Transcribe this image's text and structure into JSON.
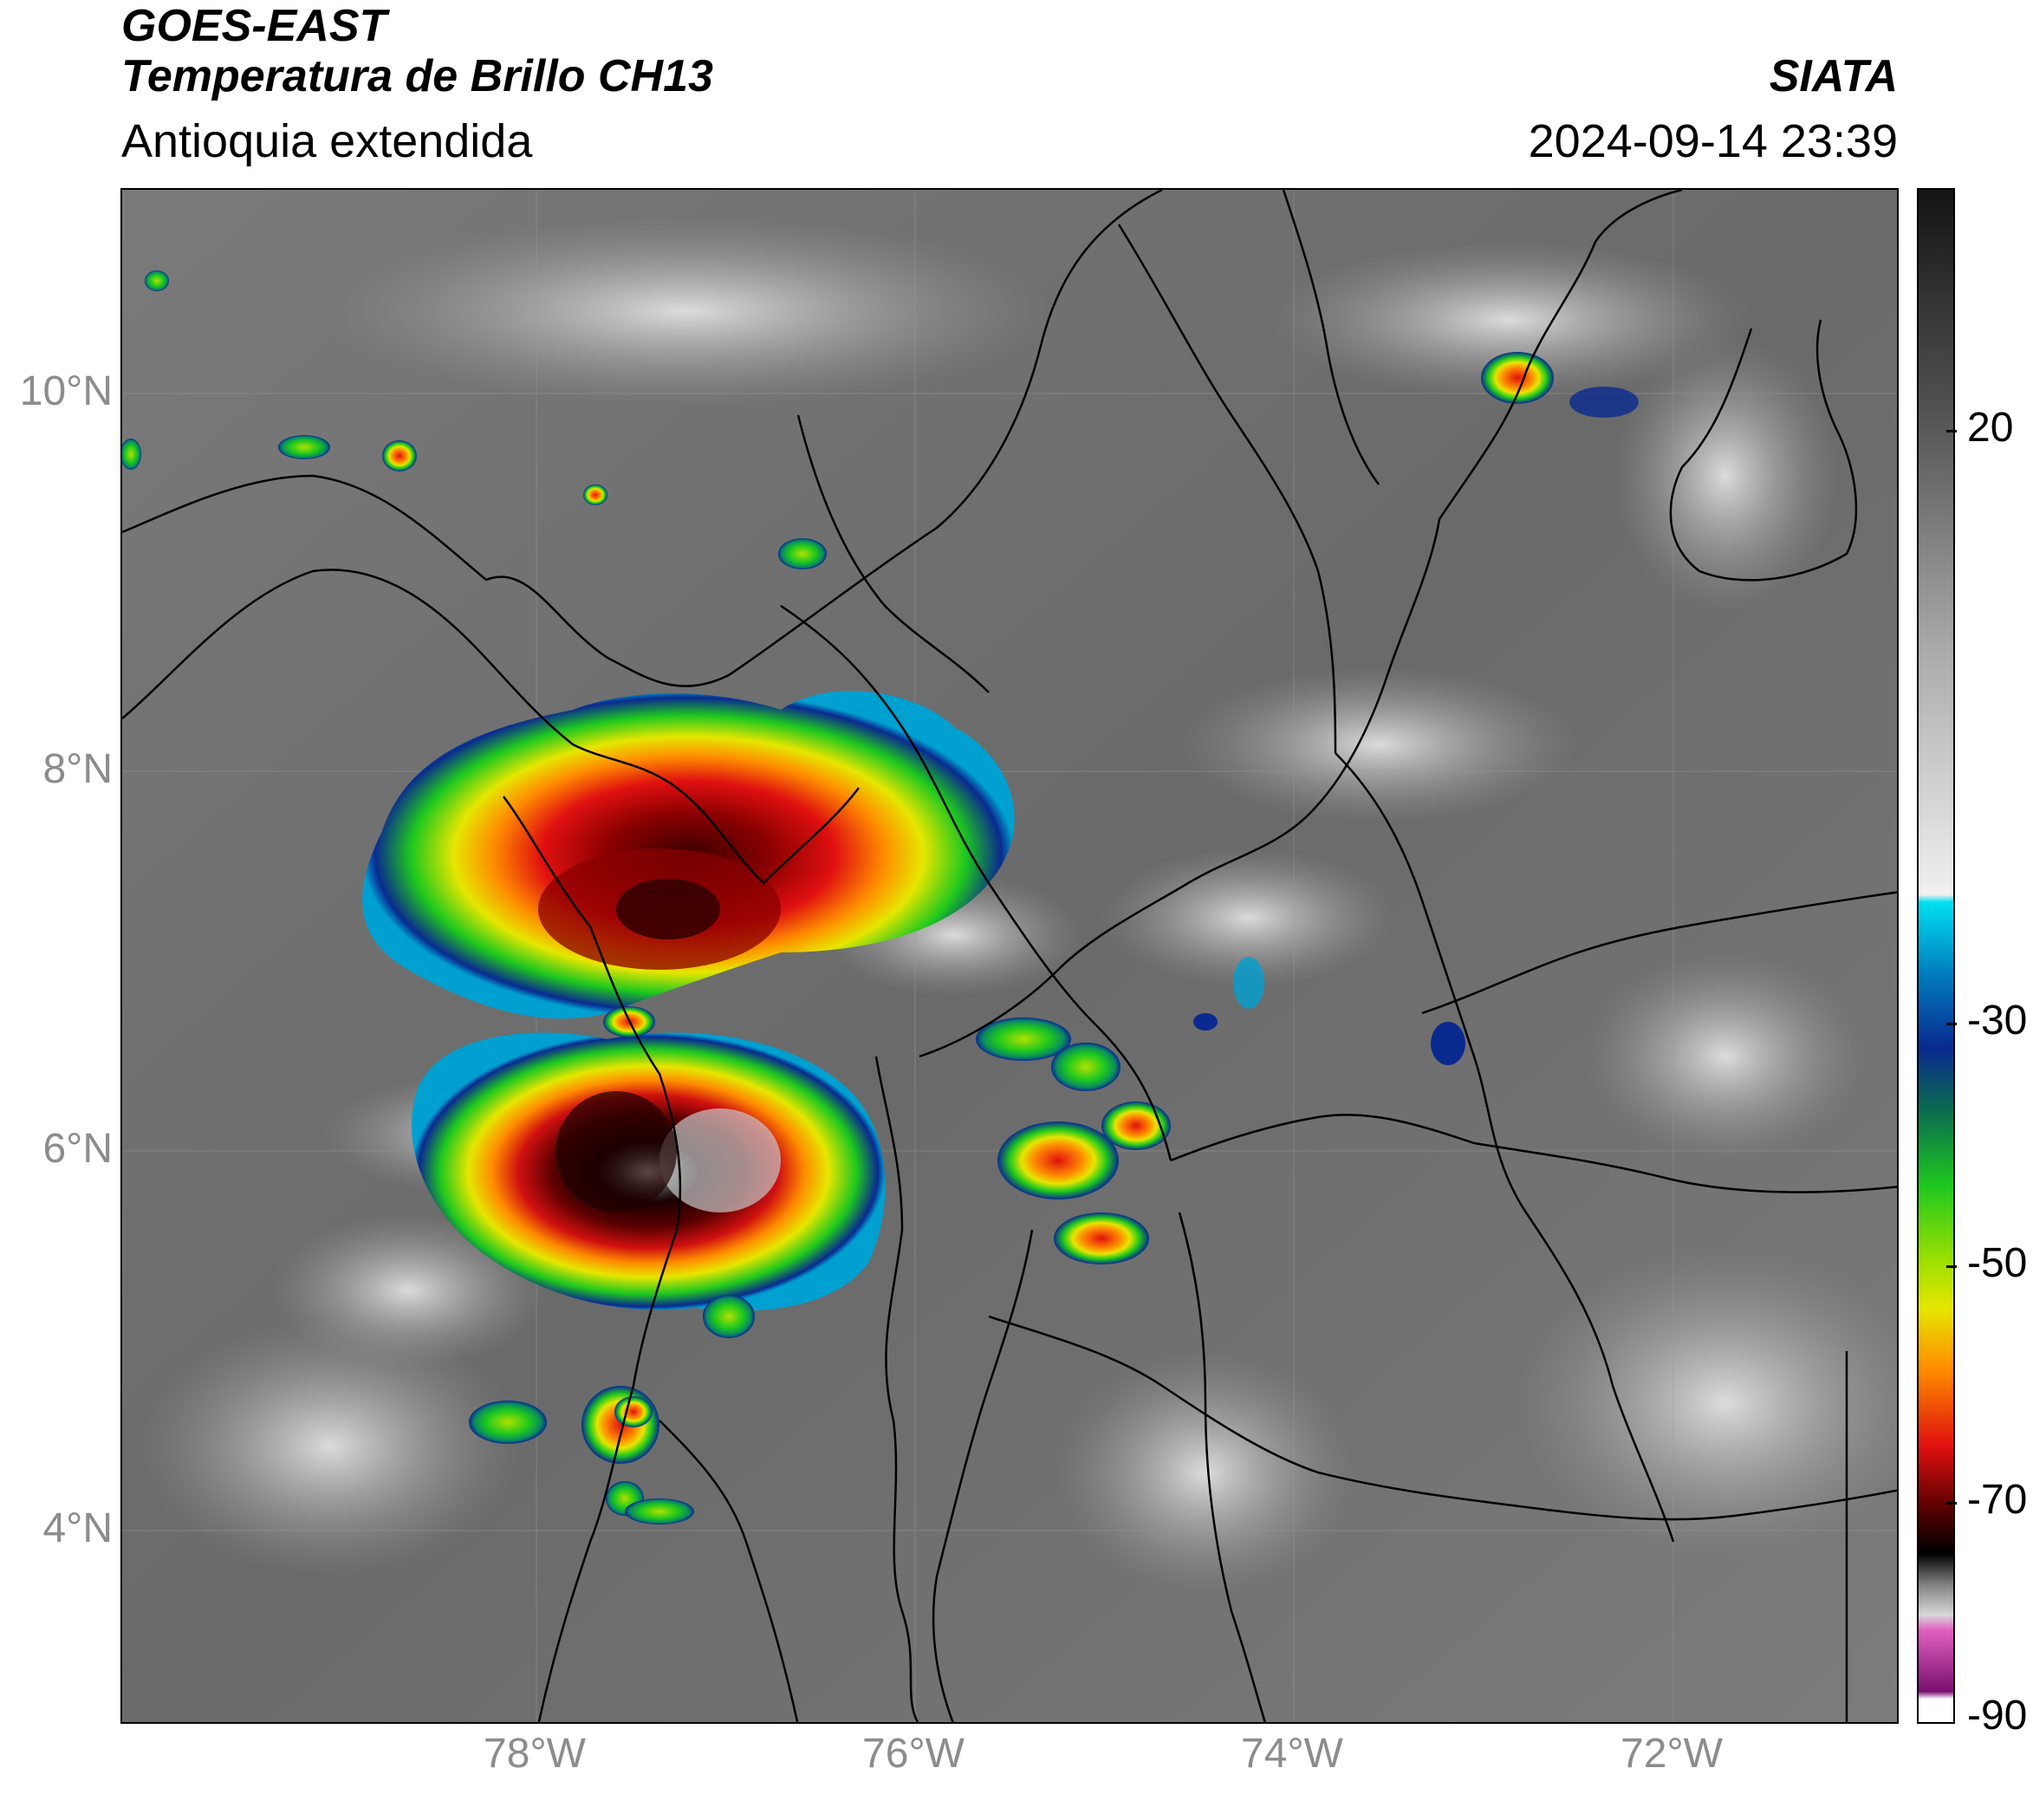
{
  "header": {
    "satellite": "GOES-EAST",
    "product": "Temperatura de Brillo CH13",
    "region": "Antioquia extendida",
    "organization": "SIATA",
    "datetime": "2024-09-14 23:39"
  },
  "map": {
    "lat_range": [
      2.7,
      10.8
    ],
    "lon_range": [
      -80.2,
      -70.8
    ],
    "y_ticks": [
      {
        "value": 10,
        "label": "10°N"
      },
      {
        "value": 8,
        "label": "8°N"
      },
      {
        "value": 6,
        "label": "6°N"
      },
      {
        "value": 4,
        "label": "4°N"
      }
    ],
    "x_ticks": [
      {
        "value": -78,
        "label": "78°W"
      },
      {
        "value": -76,
        "label": "76°W"
      },
      {
        "value": -74,
        "label": "74°W"
      },
      {
        "value": -72,
        "label": "72°W"
      }
    ]
  },
  "colorbar": {
    "range": [
      -90,
      35
    ],
    "ticks": [
      {
        "value": 20,
        "label": "20"
      },
      {
        "value": -30,
        "label": "-30"
      },
      {
        "value": -50,
        "label": "-50"
      },
      {
        "value": -70,
        "label": "-70"
      },
      {
        "value": -90,
        "label": "-90"
      }
    ],
    "colors": {
      "warm_dark": "#141414",
      "cold_white": "#f0f0f0",
      "cyan": "#00e0f0",
      "blue": "#0a2a90",
      "green": "#1ec81e",
      "yellow": "#e6e600",
      "orange": "#ff8c00",
      "red": "#e01010",
      "dark_red": "#5a0000",
      "black": "#000000",
      "magenta": "#e060c0",
      "purple": "#7a1070"
    }
  }
}
